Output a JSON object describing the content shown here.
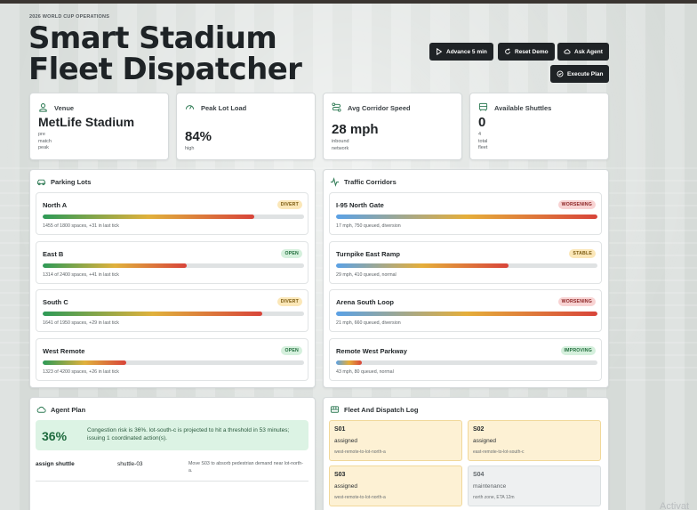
{
  "header": {
    "eyebrow": "2026 WORLD CUP OPERATIONS",
    "title": "Smart Stadium Fleet Dispatcher"
  },
  "toolbar": {
    "advance_label": "Advance 5 min",
    "reset_label": "Reset Demo",
    "ask_label": "Ask Agent",
    "execute_label": "Execute Plan"
  },
  "stats": {
    "venue": {
      "label": "Venue",
      "value": "MetLife Stadium",
      "sub": [
        "pre",
        "match",
        "peak"
      ]
    },
    "lot_load": {
      "label": "Peak Lot Load",
      "value": "84%",
      "sub": [
        "high"
      ]
    },
    "corridor": {
      "label": "Avg Corridor Speed",
      "value": "28 mph",
      "sub": [
        "inbound",
        "network"
      ]
    },
    "shuttles": {
      "label": "Available Shuttles",
      "value": "0",
      "sub": [
        "4",
        "total",
        "fleet"
      ]
    }
  },
  "parking": {
    "title": "Parking Lots",
    "lots": [
      {
        "name": "North A",
        "status": "DIVERT",
        "fill": 0.81,
        "meta": "1455 of 1800 spaces, +31 in last tick"
      },
      {
        "name": "East B",
        "status": "OPEN",
        "fill": 0.55,
        "meta": "1314 of 2400 spaces, +41 in last tick"
      },
      {
        "name": "South C",
        "status": "DIVERT",
        "fill": 0.84,
        "meta": "1641 of 1950 spaces, +29 in last tick"
      },
      {
        "name": "West Remote",
        "status": "OPEN",
        "fill": 0.32,
        "meta": "1323 of 4200 spaces, +26 in last tick"
      }
    ]
  },
  "traffic": {
    "title": "Traffic Corridors",
    "corridors": [
      {
        "name": "I-95 North Gate",
        "status": "WORSENING",
        "fill": 1.0,
        "meta": "17 mph, 750 queued, diversion"
      },
      {
        "name": "Turnpike East Ramp",
        "status": "STABLE",
        "fill": 0.66,
        "meta": "29 mph, 410 queued, normal"
      },
      {
        "name": "Arena South Loop",
        "status": "WORSENING",
        "fill": 1.0,
        "meta": "21 mph, 660 queued, diversion"
      },
      {
        "name": "Remote West Parkway",
        "status": "IMPROVING",
        "fill": 0.1,
        "meta": "43 mph, 80 queued, normal"
      }
    ]
  },
  "agent": {
    "title": "Agent Plan",
    "risk_pct": "36%",
    "summary": "Congestion risk is 36%. lot-south-c is projected to hit a threshold in 53 minutes; issuing 1 coordinated action(s).",
    "actions": [
      {
        "type": "assign shuttle",
        "target": "shuttle-03",
        "desc": "Move S03 to absorb pedestrian demand near lot-north-a."
      }
    ]
  },
  "fleet": {
    "title": "Fleet And Dispatch Log",
    "shuttles": [
      {
        "id": "S01",
        "status": "assigned",
        "route": "west-remote-to-lot-north-a"
      },
      {
        "id": "S02",
        "status": "assigned",
        "route": "east-remote-to-lot-south-c"
      },
      {
        "id": "S03",
        "status": "assigned",
        "route": "west-remote-to-lot-north-a"
      },
      {
        "id": "S04",
        "status": "maintenance",
        "route": "north zone, ETA 12m"
      }
    ]
  },
  "watermark": "Activat"
}
